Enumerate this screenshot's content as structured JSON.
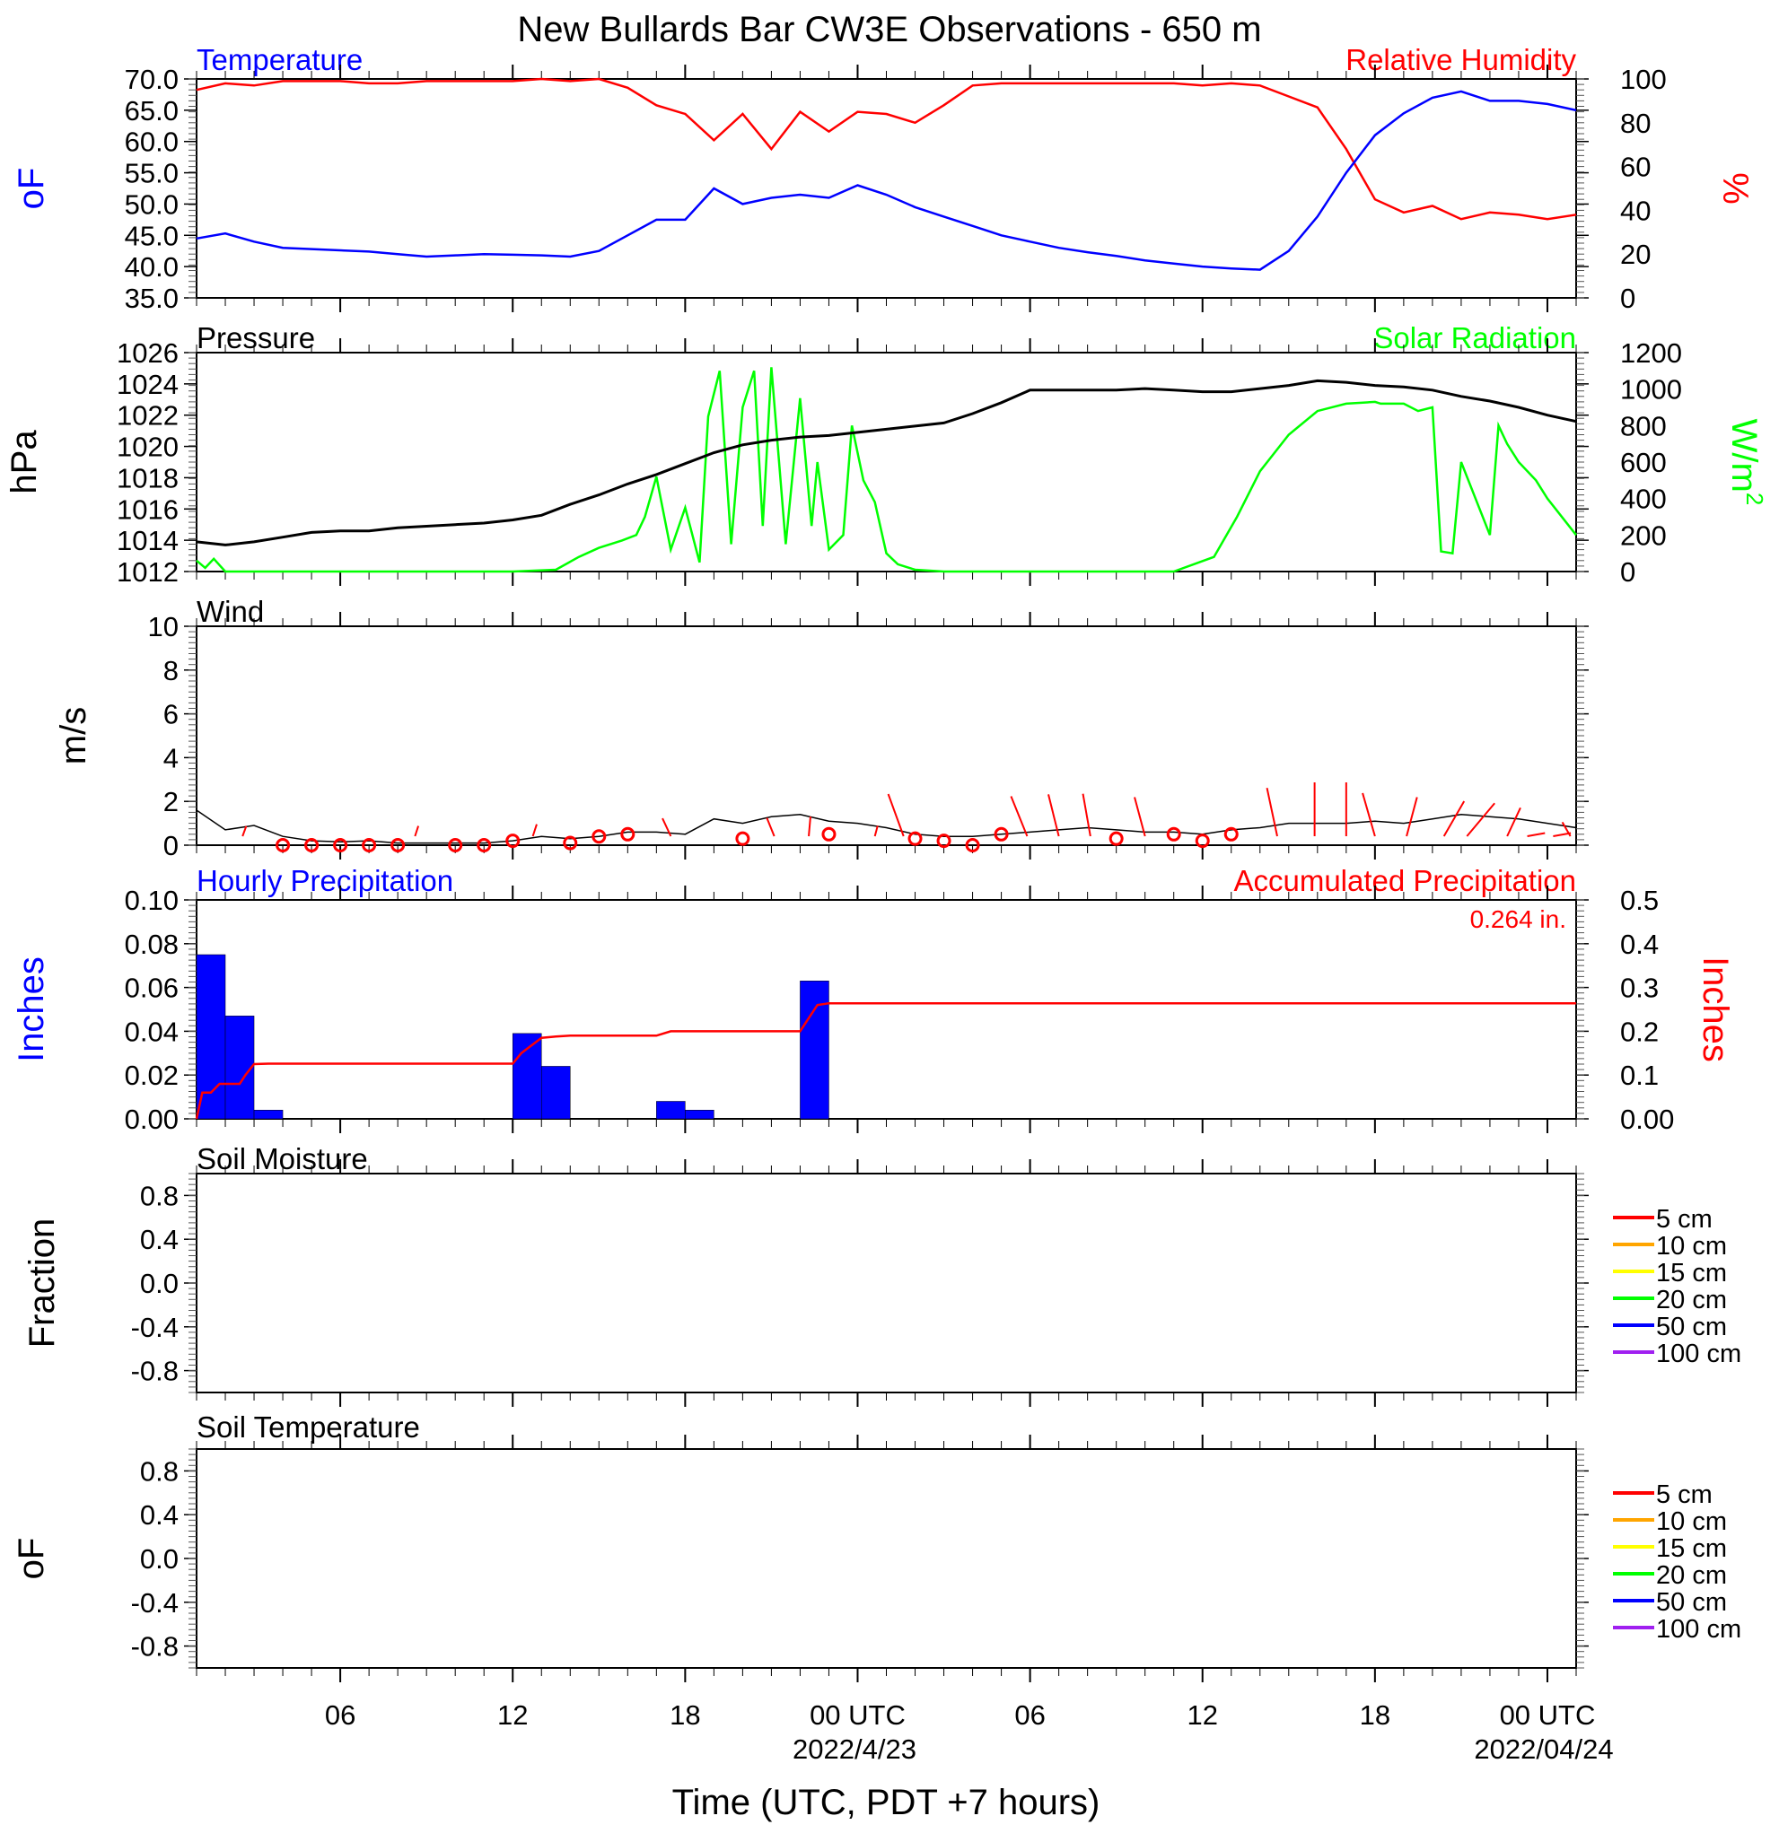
{
  "title": "New Bullards Bar CW3E Observations - 650 m",
  "xlabel": "Time (UTC, PDT +7 hours)",
  "x_ticks": [
    "06",
    "12",
    "18",
    "00 UTC",
    "06",
    "12",
    "18",
    "00 UTC"
  ],
  "x_dates": [
    "2022/4/23",
    "2022/04/24"
  ],
  "colors": {
    "temperature": "#0000ff",
    "humidity": "#ff0000",
    "pressure": "#000000",
    "solar": "#00ff00",
    "wind": "#000000",
    "barb": "#ff0000",
    "precip_bar": "#0000ff",
    "precip_accum": "#ff0000"
  },
  "panels": {
    "temp": {
      "left_title": "Temperature",
      "right_title": "Relative Humidity",
      "left_ylabel": "oF",
      "right_ylabel": "%",
      "left_ticks": [
        "70.0",
        "65.0",
        "60.0",
        "55.0",
        "50.0",
        "45.0",
        "40.0",
        "35.0"
      ],
      "right_ticks": [
        "100",
        "80",
        "60",
        "40",
        "20",
        "0"
      ]
    },
    "pres": {
      "left_title": "Pressure",
      "right_title": "Solar Radiation",
      "left_ylabel": "hPa",
      "right_ylabel": "W/m2",
      "left_ticks": [
        "1026",
        "1024",
        "1022",
        "1020",
        "1018",
        "1016",
        "1014",
        "1012"
      ],
      "right_ticks": [
        "1200",
        "1000",
        "800",
        "600",
        "400",
        "200",
        "0"
      ]
    },
    "wind": {
      "left_title": "Wind",
      "left_ylabel": "m/s",
      "left_ticks": [
        "10",
        "8",
        "6",
        "4",
        "2",
        "0"
      ]
    },
    "precip": {
      "left_title": "Hourly Precipitation",
      "right_title": "Accumulated Precipitation",
      "total_label": "0.264 in.",
      "left_ylabel": "Inches",
      "right_ylabel": "Inches",
      "left_ticks": [
        "0.10",
        "0.08",
        "0.06",
        "0.04",
        "0.02",
        "0.00"
      ],
      "right_ticks": [
        "0.5",
        "0.4",
        "0.3",
        "0.2",
        "0.1",
        "0.00"
      ]
    },
    "soilm": {
      "left_title": "Soil Moisture",
      "left_ylabel": "Fraction",
      "left_ticks": [
        "0.8",
        "0.4",
        "0.0",
        "-0.4",
        "-0.8"
      ]
    },
    "soilt": {
      "left_title": "Soil Temperature",
      "left_ylabel": "oF",
      "left_ticks": [
        "0.8",
        "0.4",
        "0.0",
        "-0.4",
        "-0.8"
      ]
    }
  },
  "legend": [
    {
      "label": "5 cm",
      "color": "#ff0000"
    },
    {
      "label": "10 cm",
      "color": "#ffa500"
    },
    {
      "label": "15 cm",
      "color": "#ffff00"
    },
    {
      "label": "20 cm",
      "color": "#00ff00"
    },
    {
      "label": "50 cm",
      "color": "#0000ff"
    },
    {
      "label": "100 cm",
      "color": "#a020f0"
    }
  ],
  "chart_data": [
    {
      "type": "line",
      "title": "Temperature / Relative Humidity",
      "x_unit": "hours since 2022-04-22 01 UTC",
      "series": [
        {
          "name": "Temperature",
          "unit": "°F",
          "ylim": [
            35,
            70
          ],
          "x": [
            0,
            1,
            2,
            3,
            4,
            5,
            6,
            7,
            8,
            9,
            10,
            11,
            12,
            13,
            14,
            15,
            16,
            17,
            18,
            19,
            20,
            21,
            22,
            23,
            24,
            25,
            26,
            27,
            28,
            29,
            30,
            31,
            32,
            33,
            34,
            35,
            36,
            37,
            38,
            39,
            40,
            41,
            42,
            43,
            44,
            45,
            46,
            47,
            48
          ],
          "y": [
            44.5,
            45.3,
            44.0,
            43.0,
            42.8,
            42.6,
            42.4,
            42.0,
            41.6,
            41.8,
            42.0,
            41.9,
            41.8,
            41.6,
            42.5,
            45.0,
            47.5,
            47.5,
            52.5,
            50.0,
            51.0,
            51.5,
            51.0,
            53.0,
            51.5,
            49.5,
            48.0,
            46.5,
            45.0,
            44.0,
            43.0,
            42.3,
            41.7,
            41.0,
            40.5,
            40.0,
            39.7,
            39.5,
            42.5,
            48.0,
            55.0,
            61.0,
            64.5,
            67.0,
            68.0,
            66.5,
            66.5,
            66.0,
            65.0
          ]
        },
        {
          "name": "Relative Humidity",
          "unit": "%",
          "ylim": [
            0,
            100
          ],
          "x": [
            0,
            1,
            2,
            3,
            4,
            5,
            6,
            7,
            8,
            9,
            10,
            11,
            12,
            13,
            14,
            15,
            16,
            17,
            18,
            19,
            20,
            21,
            22,
            23,
            24,
            25,
            26,
            27,
            28,
            29,
            30,
            31,
            32,
            33,
            34,
            35,
            36,
            37,
            38,
            39,
            40,
            41,
            42,
            43,
            44,
            45,
            46,
            47,
            48
          ],
          "y": [
            95,
            98,
            97,
            99,
            99,
            99,
            98,
            98,
            99,
            99,
            99,
            99,
            100,
            99,
            100,
            96,
            88,
            84,
            72,
            84,
            68,
            85,
            76,
            85,
            84,
            80,
            88,
            97,
            98,
            98,
            98,
            98,
            98,
            98,
            98,
            97,
            98,
            97,
            92,
            87,
            68,
            45,
            39,
            42,
            36,
            39,
            38,
            36,
            38
          ]
        }
      ]
    },
    {
      "type": "line",
      "title": "Pressure / Solar Radiation",
      "x_unit": "hours since 2022-04-22 01 UTC",
      "series": [
        {
          "name": "Pressure",
          "unit": "hPa",
          "ylim": [
            1012,
            1026
          ],
          "x": [
            0,
            1,
            2,
            3,
            4,
            5,
            6,
            7,
            8,
            9,
            10,
            11,
            12,
            13,
            14,
            15,
            16,
            17,
            18,
            19,
            20,
            21,
            22,
            23,
            24,
            25,
            26,
            27,
            28,
            29,
            30,
            31,
            32,
            33,
            34,
            35,
            36,
            37,
            38,
            39,
            40,
            41,
            42,
            43,
            44,
            45,
            46,
            47,
            48
          ],
          "y": [
            1013.9,
            1013.7,
            1013.9,
            1014.2,
            1014.5,
            1014.6,
            1014.6,
            1014.8,
            1014.9,
            1015.0,
            1015.1,
            1015.3,
            1015.6,
            1016.3,
            1016.9,
            1017.6,
            1018.2,
            1018.9,
            1019.6,
            1020.1,
            1020.4,
            1020.6,
            1020.7,
            1020.9,
            1021.1,
            1021.3,
            1021.5,
            1022.1,
            1022.8,
            1023.6,
            1023.6,
            1023.6,
            1023.6,
            1023.7,
            1023.6,
            1023.5,
            1023.5,
            1023.7,
            1023.9,
            1024.2,
            1024.1,
            1023.9,
            1023.8,
            1023.6,
            1023.2,
            1022.9,
            1022.5,
            1022.0,
            1021.6
          ]
        },
        {
          "name": "Solar Radiation",
          "unit": "W/m2",
          "ylim": [
            0,
            1200
          ],
          "x": [
            0,
            0.3,
            0.6,
            1,
            1.3,
            2,
            5,
            8,
            11,
            12.5,
            13.3,
            14,
            14.8,
            15.3,
            15.6,
            16,
            16.5,
            17,
            17.5,
            17.8,
            18.2,
            18.6,
            19,
            19.4,
            19.7,
            20,
            20.5,
            21,
            21.4,
            21.6,
            22,
            22.5,
            22.8,
            23.2,
            23.6,
            24,
            24.4,
            25,
            26,
            27,
            29,
            31,
            34,
            35.4,
            36.2,
            37,
            38,
            39,
            40,
            41,
            41.2,
            41.6,
            42,
            42.5,
            43,
            43.3,
            43.7,
            44,
            45,
            45.3,
            45.6,
            46,
            46.6,
            47,
            48
          ],
          "x_note": "",
          "y": [
            60,
            20,
            70,
            0,
            0,
            0,
            0,
            0,
            0,
            10,
            80,
            130,
            170,
            200,
            300,
            520,
            120,
            350,
            50,
            850,
            1100,
            150,
            900,
            1100,
            250,
            1120,
            150,
            950,
            250,
            600,
            120,
            200,
            800,
            500,
            380,
            100,
            40,
            10,
            0,
            0,
            0,
            0,
            0,
            80,
            300,
            550,
            750,
            880,
            920,
            930,
            920,
            920,
            920,
            880,
            900,
            110,
            100,
            600,
            200,
            800,
            700,
            600,
            500,
            400,
            200
          ]
        }
      ]
    },
    {
      "type": "line",
      "title": "Wind",
      "unit": "m/s",
      "ylim": [
        0,
        10
      ],
      "x": [
        0,
        1,
        2,
        3,
        4,
        5,
        6,
        7,
        8,
        9,
        10,
        11,
        12,
        13,
        14,
        15,
        16,
        17,
        18,
        19,
        20,
        21,
        22,
        23,
        24,
        25,
        26,
        27,
        28,
        29,
        30,
        31,
        32,
        33,
        34,
        35,
        36,
        37,
        38,
        39,
        40,
        41,
        42,
        43,
        44,
        45,
        46,
        47,
        48
      ],
      "y": [
        1.6,
        0.7,
        0.9,
        0.4,
        0.2,
        0.15,
        0.2,
        0.1,
        0.1,
        0.1,
        0.1,
        0.2,
        0.4,
        0.3,
        0.4,
        0.6,
        0.6,
        0.5,
        1.2,
        1.0,
        1.3,
        1.4,
        1.1,
        1.0,
        0.8,
        0.5,
        0.4,
        0.4,
        0.5,
        0.6,
        0.7,
        0.8,
        0.7,
        0.6,
        0.6,
        0.5,
        0.7,
        0.8,
        1.0,
        1.0,
        1.0,
        1.1,
        1.0,
        1.2,
        1.4,
        1.3,
        1.2,
        1.0,
        0.8
      ]
    },
    {
      "type": "bar",
      "title": "Hourly Precipitation",
      "unit": "in",
      "ylim": [
        0,
        0.1
      ],
      "categories": [
        "01",
        "02",
        "03",
        "12",
        "13",
        "14",
        "17",
        "18",
        "22"
      ],
      "values": [
        0.075,
        0.047,
        0.004,
        0.039,
        0.024,
        0.0,
        0.008,
        0.004,
        0.063
      ],
      "bar_start_hours": [
        0,
        1,
        2,
        11,
        12,
        13,
        16,
        17,
        21
      ]
    },
    {
      "type": "line",
      "title": "Accumulated Precipitation",
      "unit": "in",
      "ylim": [
        0,
        0.5
      ],
      "x": [
        0,
        0.2,
        0.5,
        0.8,
        1.0,
        1.5,
        1.7,
        2.0,
        2.5,
        11,
        11.3,
        11.6,
        12,
        12.5,
        13,
        16,
        16.5,
        17,
        21,
        21.3,
        21.6,
        22,
        48
      ],
      "y": [
        0,
        0.06,
        0.06,
        0.08,
        0.08,
        0.08,
        0.1,
        0.125,
        0.126,
        0.126,
        0.15,
        0.165,
        0.185,
        0.188,
        0.19,
        0.19,
        0.2,
        0.2,
        0.2,
        0.23,
        0.26,
        0.264,
        0.264
      ]
    },
    {
      "type": "line",
      "title": "Soil Moisture",
      "ylim": [
        -1,
        1
      ],
      "series": [
        {
          "name": "5 cm",
          "values": []
        },
        {
          "name": "10 cm",
          "values": []
        },
        {
          "name": "15 cm",
          "values": []
        },
        {
          "name": "20 cm",
          "values": []
        },
        {
          "name": "50 cm",
          "values": []
        },
        {
          "name": "100 cm",
          "values": []
        }
      ]
    },
    {
      "type": "line",
      "title": "Soil Temperature",
      "ylim": [
        -1,
        1
      ],
      "series": [
        {
          "name": "5 cm",
          "values": []
        },
        {
          "name": "10 cm",
          "values": []
        },
        {
          "name": "15 cm",
          "values": []
        },
        {
          "name": "20 cm",
          "values": []
        },
        {
          "name": "50 cm",
          "values": []
        },
        {
          "name": "100 cm",
          "values": []
        }
      ]
    }
  ]
}
